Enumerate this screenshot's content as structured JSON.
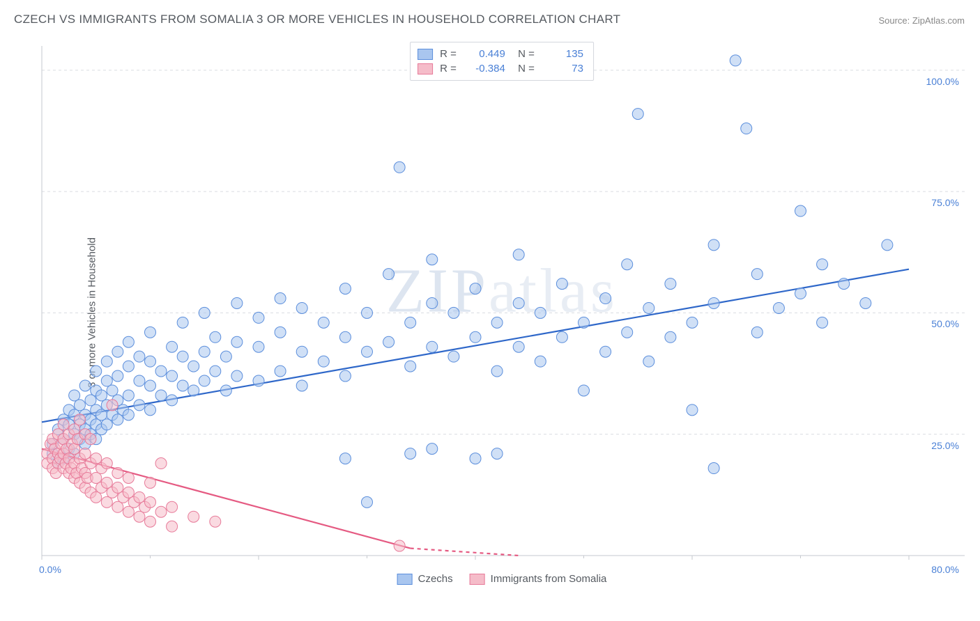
{
  "title": "CZECH VS IMMIGRANTS FROM SOMALIA 3 OR MORE VEHICLES IN HOUSEHOLD CORRELATION CHART",
  "source": "Source: ZipAtlas.com",
  "y_axis_label": "3 or more Vehicles in Household",
  "watermark": "ZIPatlas",
  "chart": {
    "type": "scatter",
    "xlim": [
      0,
      80
    ],
    "ylim": [
      0,
      105
    ],
    "x_ticks": [
      0,
      20,
      40,
      60,
      80
    ],
    "x_tick_labels": [
      "0.0%",
      "",
      "",
      "",
      "80.0%"
    ],
    "y_ticks": [
      25,
      50,
      75,
      100
    ],
    "y_tick_labels": [
      "25.0%",
      "50.0%",
      "75.0%",
      "100.0%"
    ],
    "grid_color": "#d9dce1",
    "axis_color": "#c6c9cf",
    "tick_label_color": "#4a80d6",
    "background_color": "#ffffff",
    "marker_radius": 8,
    "marker_opacity": 0.55,
    "line_width": 2.2
  },
  "series": [
    {
      "name": "Czechs",
      "color_fill": "#a9c6ef",
      "color_stroke": "#5b8edc",
      "color_line": "#2e67c9",
      "R": "0.449",
      "N": "135",
      "regression": {
        "x1": 0,
        "y1": 27.5,
        "x2": 80,
        "y2": 59
      },
      "points": [
        [
          1,
          21
        ],
        [
          1,
          23
        ],
        [
          1.5,
          19
        ],
        [
          1.5,
          26
        ],
        [
          2,
          20
        ],
        [
          2,
          24
        ],
        [
          2,
          28
        ],
        [
          2.5,
          22
        ],
        [
          2.5,
          27
        ],
        [
          2.5,
          30
        ],
        [
          3,
          21
        ],
        [
          3,
          25
        ],
        [
          3,
          29
        ],
        [
          3,
          33
        ],
        [
          3.5,
          24
        ],
        [
          3.5,
          27
        ],
        [
          3.5,
          31
        ],
        [
          4,
          23
        ],
        [
          4,
          26
        ],
        [
          4,
          29
        ],
        [
          4,
          35
        ],
        [
          4.5,
          25
        ],
        [
          4.5,
          28
        ],
        [
          4.5,
          32
        ],
        [
          5,
          24
        ],
        [
          5,
          27
        ],
        [
          5,
          30
        ],
        [
          5,
          34
        ],
        [
          5,
          38
        ],
        [
          5.5,
          26
        ],
        [
          5.5,
          29
        ],
        [
          5.5,
          33
        ],
        [
          6,
          27
        ],
        [
          6,
          31
        ],
        [
          6,
          36
        ],
        [
          6,
          40
        ],
        [
          6.5,
          29
        ],
        [
          6.5,
          34
        ],
        [
          7,
          28
        ],
        [
          7,
          32
        ],
        [
          7,
          37
        ],
        [
          7,
          42
        ],
        [
          7.5,
          30
        ],
        [
          8,
          29
        ],
        [
          8,
          33
        ],
        [
          8,
          39
        ],
        [
          8,
          44
        ],
        [
          9,
          31
        ],
        [
          9,
          36
        ],
        [
          9,
          41
        ],
        [
          10,
          30
        ],
        [
          10,
          35
        ],
        [
          10,
          40
        ],
        [
          10,
          46
        ],
        [
          11,
          33
        ],
        [
          11,
          38
        ],
        [
          12,
          32
        ],
        [
          12,
          37
        ],
        [
          12,
          43
        ],
        [
          13,
          35
        ],
        [
          13,
          41
        ],
        [
          13,
          48
        ],
        [
          14,
          34
        ],
        [
          14,
          39
        ],
        [
          15,
          36
        ],
        [
          15,
          42
        ],
        [
          15,
          50
        ],
        [
          16,
          38
        ],
        [
          16,
          45
        ],
        [
          17,
          34
        ],
        [
          17,
          41
        ],
        [
          18,
          37
        ],
        [
          18,
          44
        ],
        [
          18,
          52
        ],
        [
          20,
          36
        ],
        [
          20,
          43
        ],
        [
          20,
          49
        ],
        [
          22,
          38
        ],
        [
          22,
          46
        ],
        [
          22,
          53
        ],
        [
          24,
          35
        ],
        [
          24,
          42
        ],
        [
          24,
          51
        ],
        [
          26,
          40
        ],
        [
          26,
          48
        ],
        [
          28,
          37
        ],
        [
          28,
          45
        ],
        [
          28,
          55
        ],
        [
          30,
          42
        ],
        [
          30,
          50
        ],
        [
          30,
          11
        ],
        [
          32,
          44
        ],
        [
          32,
          58
        ],
        [
          33,
          80
        ],
        [
          34,
          39
        ],
        [
          34,
          48
        ],
        [
          36,
          43
        ],
        [
          36,
          52
        ],
        [
          36,
          61
        ],
        [
          38,
          41
        ],
        [
          38,
          50
        ],
        [
          40,
          45
        ],
        [
          40,
          55
        ],
        [
          42,
          38
        ],
        [
          42,
          48
        ],
        [
          44,
          43
        ],
        [
          44,
          52
        ],
        [
          44,
          62
        ],
        [
          46,
          40
        ],
        [
          46,
          50
        ],
        [
          48,
          45
        ],
        [
          48,
          56
        ],
        [
          50,
          34
        ],
        [
          50,
          48
        ],
        [
          52,
          42
        ],
        [
          52,
          53
        ],
        [
          54,
          46
        ],
        [
          54,
          60
        ],
        [
          55,
          91
        ],
        [
          56,
          40
        ],
        [
          56,
          51
        ],
        [
          58,
          45
        ],
        [
          58,
          56
        ],
        [
          60,
          48
        ],
        [
          60,
          30
        ],
        [
          62,
          52
        ],
        [
          62,
          64
        ],
        [
          64,
          102
        ],
        [
          65,
          88
        ],
        [
          66,
          46
        ],
        [
          66,
          58
        ],
        [
          68,
          51
        ],
        [
          70,
          54
        ],
        [
          70,
          71
        ],
        [
          72,
          48
        ],
        [
          72,
          60
        ],
        [
          74,
          56
        ],
        [
          76,
          52
        ],
        [
          78,
          64
        ],
        [
          62,
          18
        ],
        [
          40,
          20
        ],
        [
          42,
          21
        ],
        [
          36,
          22
        ],
        [
          34,
          21
        ],
        [
          28,
          20
        ]
      ]
    },
    {
      "name": "Immigrants from Somalia",
      "color_fill": "#f5bcc9",
      "color_stroke": "#e77a99",
      "color_line": "#e55a82",
      "R": "-0.384",
      "N": "73",
      "regression": {
        "x1": 0,
        "y1": 22,
        "x2": 34,
        "y2": 1.5
      },
      "regression_dash": {
        "x1": 34,
        "y1": 1.5,
        "x2": 44,
        "y2": -5
      },
      "points": [
        [
          0.5,
          21
        ],
        [
          0.5,
          19
        ],
        [
          0.8,
          23
        ],
        [
          1,
          20
        ],
        [
          1,
          18
        ],
        [
          1,
          24
        ],
        [
          1.2,
          22
        ],
        [
          1.3,
          17
        ],
        [
          1.5,
          21
        ],
        [
          1.5,
          19
        ],
        [
          1.5,
          25
        ],
        [
          1.7,
          20
        ],
        [
          1.8,
          23
        ],
        [
          2,
          18
        ],
        [
          2,
          21
        ],
        [
          2,
          24
        ],
        [
          2,
          27
        ],
        [
          2.2,
          19
        ],
        [
          2.3,
          22
        ],
        [
          2.5,
          17
        ],
        [
          2.5,
          20
        ],
        [
          2.5,
          25
        ],
        [
          2.7,
          18
        ],
        [
          2.8,
          23
        ],
        [
          3,
          16
        ],
        [
          3,
          19
        ],
        [
          3,
          22
        ],
        [
          3,
          26
        ],
        [
          3.2,
          17
        ],
        [
          3.3,
          24
        ],
        [
          3.5,
          15
        ],
        [
          3.5,
          20
        ],
        [
          3.5,
          28
        ],
        [
          3.7,
          18
        ],
        [
          4,
          14
        ],
        [
          4,
          17
        ],
        [
          4,
          21
        ],
        [
          4,
          25
        ],
        [
          4.2,
          16
        ],
        [
          4.5,
          13
        ],
        [
          4.5,
          19
        ],
        [
          4.5,
          24
        ],
        [
          5,
          12
        ],
        [
          5,
          16
        ],
        [
          5,
          20
        ],
        [
          5.5,
          14
        ],
        [
          5.5,
          18
        ],
        [
          6,
          11
        ],
        [
          6,
          15
        ],
        [
          6,
          19
        ],
        [
          6.5,
          13
        ],
        [
          6.5,
          31
        ],
        [
          7,
          10
        ],
        [
          7,
          14
        ],
        [
          7,
          17
        ],
        [
          7.5,
          12
        ],
        [
          8,
          9
        ],
        [
          8,
          13
        ],
        [
          8,
          16
        ],
        [
          8.5,
          11
        ],
        [
          9,
          8
        ],
        [
          9,
          12
        ],
        [
          9.5,
          10
        ],
        [
          10,
          7
        ],
        [
          10,
          11
        ],
        [
          10,
          15
        ],
        [
          11,
          9
        ],
        [
          11,
          19
        ],
        [
          12,
          6
        ],
        [
          12,
          10
        ],
        [
          14,
          8
        ],
        [
          16,
          7
        ],
        [
          33,
          2
        ]
      ]
    }
  ],
  "legend_bottom": [
    {
      "label": "Czechs",
      "fill": "#a9c6ef",
      "stroke": "#5b8edc"
    },
    {
      "label": "Immigrants from Somalia",
      "fill": "#f5bcc9",
      "stroke": "#e77a99"
    }
  ]
}
